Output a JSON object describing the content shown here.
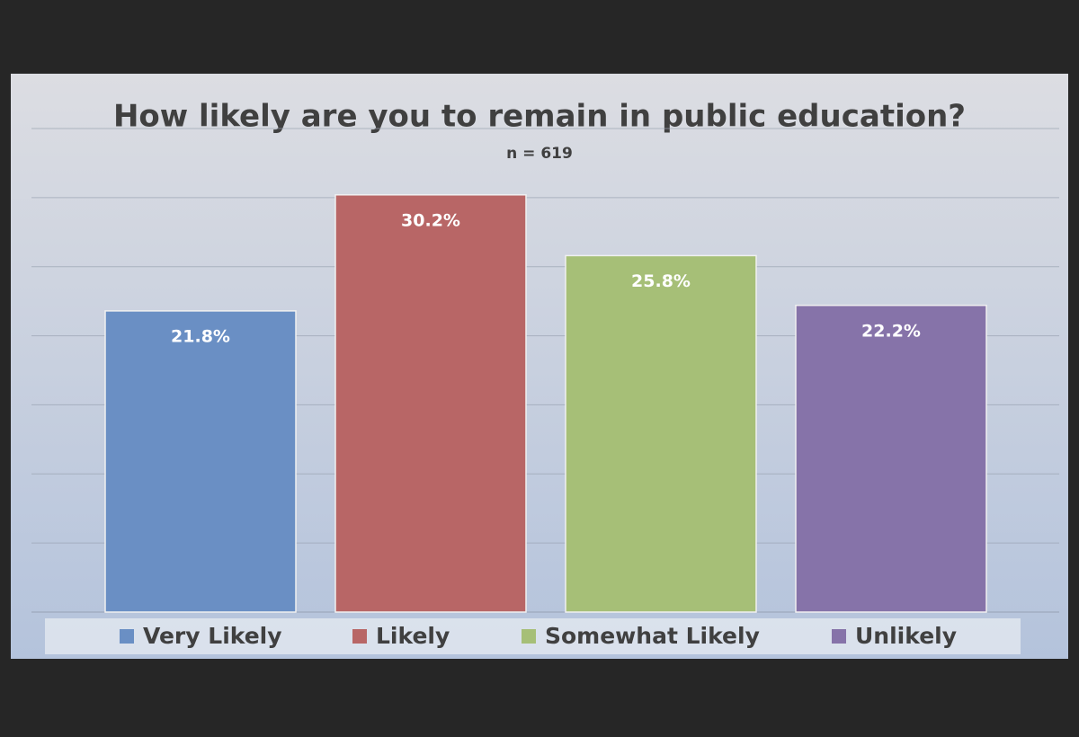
{
  "chart_data": {
    "type": "bar",
    "title": "How likely are you to remain in public education?",
    "subtitle": "n = 619",
    "series": [
      {
        "name": "Very Likely",
        "color": "#6a8fc4",
        "values": [
          21.8
        ],
        "value_labels": [
          "21.8%"
        ]
      },
      {
        "name": "Likely",
        "color": "#b86666",
        "values": [
          30.2
        ],
        "value_labels": [
          "30.2%"
        ]
      },
      {
        "name": "Somewhat Likely",
        "color": "#a6bf77",
        "values": [
          25.8
        ],
        "value_labels": [
          "25.8%"
        ]
      },
      {
        "name": "Unlikely",
        "color": "#8673a9",
        "values": [
          22.2
        ],
        "value_labels": [
          "22.2%"
        ]
      }
    ],
    "ylim": [
      0,
      35
    ],
    "yticks": [
      0,
      5,
      10,
      15,
      20,
      25,
      30,
      35
    ],
    "grid": true
  }
}
